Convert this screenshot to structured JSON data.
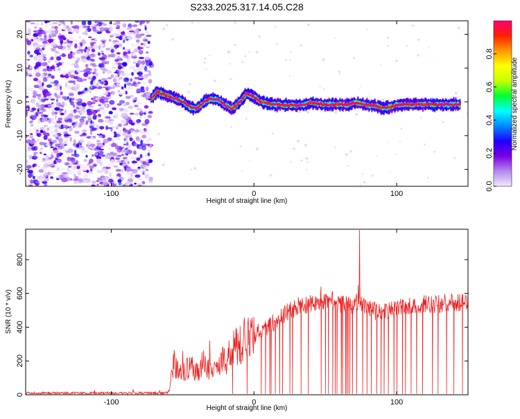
{
  "figure_title": "S233.2025.317.14.05.C28",
  "chart_data": [
    {
      "type": "heatmap",
      "xlabel": "Height of straight line (km)",
      "ylabel": "Frequency (Hz)",
      "xlim": [
        -160,
        150
      ],
      "ylim": [
        -25,
        24
      ],
      "xticks": [
        -100,
        0,
        100
      ],
      "yticks": [
        -20,
        -10,
        0,
        10,
        20
      ],
      "noise_region_x": [
        -160,
        -72
      ],
      "signal_ridge": {
        "x": [
          -72,
          -68,
          -62,
          -55,
          -50,
          -45,
          -40,
          -35,
          -30,
          -25,
          -20,
          -15,
          -10,
          -5,
          0,
          5,
          10,
          15,
          20,
          25,
          30,
          35,
          40,
          45,
          50,
          55,
          60,
          65,
          70,
          75,
          80,
          85,
          90,
          95,
          100,
          105,
          110,
          115,
          120,
          125,
          130,
          135,
          140,
          145
        ],
        "freq": [
          1.0,
          3.0,
          2.0,
          1.0,
          0.0,
          -1.5,
          -2.0,
          0.0,
          1.0,
          0.5,
          -1.0,
          -2.0,
          0.0,
          2.5,
          1.5,
          0.0,
          -0.5,
          -0.8,
          -0.9,
          -1.0,
          -1.0,
          -1.0,
          -0.2,
          -0.5,
          -0.9,
          -0.8,
          -0.8,
          -0.9,
          -0.3,
          -0.5,
          -1.0,
          -1.2,
          -1.8,
          -1.6,
          -1.0,
          -0.8,
          -0.8,
          -0.7,
          -0.7,
          -0.8,
          -0.8,
          -0.8,
          -0.8,
          -0.8
        ]
      },
      "colorbar": {
        "label": "Normalized spectral amplitude",
        "range": [
          0,
          1
        ],
        "ticks": [
          "0.0",
          "0.2",
          "0.4",
          "0.6",
          "0.8"
        ],
        "tick_values": [
          0.0,
          0.2,
          0.4,
          0.6,
          0.8
        ],
        "colors": [
          "#f4e8fb",
          "#b48aee",
          "#7a00e6",
          "#2000ff",
          "#0088ff",
          "#00ffff",
          "#00ff30",
          "#c8ff00",
          "#ffff00",
          "#ff9900",
          "#ff2000",
          "#ff0070"
        ]
      }
    },
    {
      "type": "line",
      "xlabel": "Height of straight line (km)",
      "ylabel": "SNR (10 * v/v)",
      "xlim": [
        -160,
        150
      ],
      "ylim": [
        0,
        980
      ],
      "xticks": [
        -100,
        0,
        100
      ],
      "yticks": [
        0,
        200,
        400,
        600,
        800
      ],
      "series_color": "#e82020",
      "envelope": {
        "x": [
          -160,
          -130,
          -100,
          -75,
          -65,
          -60,
          -56,
          -50,
          -45,
          -40,
          -35,
          -30,
          -25,
          -20,
          -15,
          -10,
          -5,
          0,
          5,
          10,
          15,
          20,
          25,
          30,
          35,
          40,
          45,
          50,
          55,
          60,
          65,
          70,
          74,
          80,
          90,
          100,
          110,
          120,
          130,
          140,
          150
        ],
        "snr": [
          10,
          10,
          10,
          10,
          10,
          12,
          190,
          120,
          170,
          130,
          200,
          120,
          170,
          210,
          260,
          310,
          320,
          350,
          380,
          410,
          430,
          470,
          500,
          520,
          530,
          540,
          545,
          560,
          560,
          540,
          535,
          530,
          560,
          510,
          480,
          520,
          530,
          535,
          540,
          550,
          550
        ]
      },
      "dropout_x": [
        -15,
        -5,
        5,
        8,
        11,
        12,
        15,
        18,
        20,
        25,
        27,
        33,
        38,
        47,
        50,
        52,
        55,
        57,
        58,
        61,
        62,
        64,
        65,
        66,
        67,
        69,
        72,
        76,
        79,
        82,
        86,
        89,
        91,
        94,
        98,
        100,
        104,
        106,
        110,
        114,
        118,
        125,
        129,
        135,
        140,
        146
      ],
      "spikes": [
        {
          "x": 74,
          "snr": 975
        },
        {
          "x": 73,
          "snr": 650
        },
        {
          "x": -56,
          "snr": 265
        },
        {
          "x": -50,
          "snr": 260
        },
        {
          "x": -31,
          "snr": 320
        },
        {
          "x": 47,
          "snr": 640
        }
      ]
    }
  ]
}
